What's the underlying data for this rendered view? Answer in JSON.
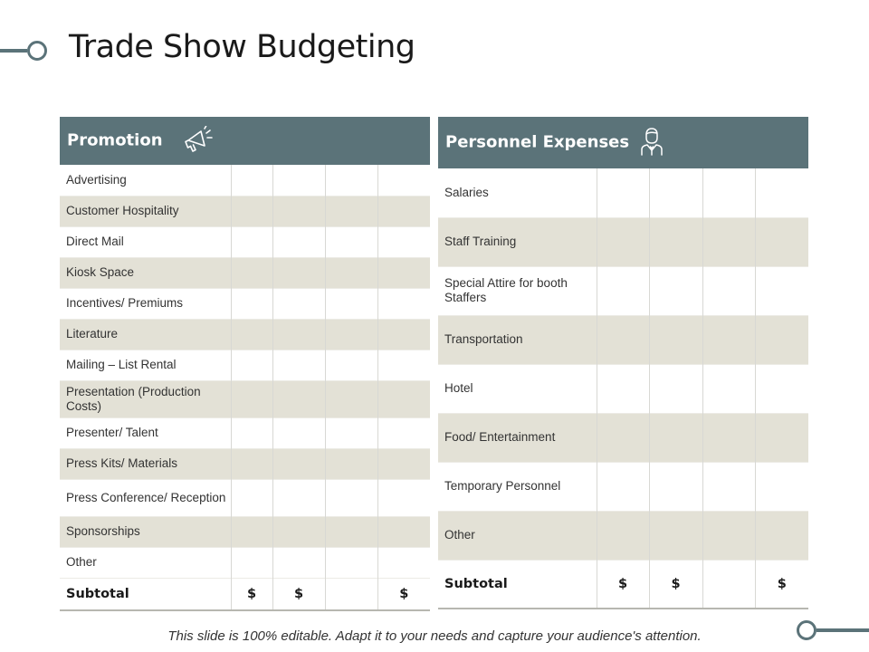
{
  "slide": {
    "title": "Trade Show Budgeting",
    "footer": "This slide is 100% editable. Adapt it to your needs and capture your audience's attention.",
    "accent_color": "#5b7379",
    "band_color": "#e3e1d6"
  },
  "promotion": {
    "header": "Promotion",
    "icon": "megaphone-icon",
    "rows": [
      "Advertising",
      "Customer Hospitality",
      "Direct Mail",
      "Kiosk Space",
      "Incentives/ Premiums",
      "Literature",
      "Mailing – List Rental",
      "Presentation (Production Costs)",
      "Presenter/ Talent",
      "Press Kits/ Materials",
      "Press Conference/ Reception",
      "Sponsorships",
      "Other"
    ],
    "subtotal": {
      "label": "Subtotal",
      "cells": [
        "$",
        "$",
        "",
        "$"
      ]
    }
  },
  "personnel": {
    "header": "Personnel Expenses",
    "icon": "person-icon",
    "rows": [
      "Salaries",
      "Staff Training",
      "Special Attire for booth Staffers",
      "Transportation",
      "Hotel",
      "Food/ Entertainment",
      "Temporary Personnel",
      "Other"
    ],
    "subtotal": {
      "label": "Subtotal",
      "cells": [
        "$",
        "$",
        "",
        "$"
      ]
    }
  }
}
